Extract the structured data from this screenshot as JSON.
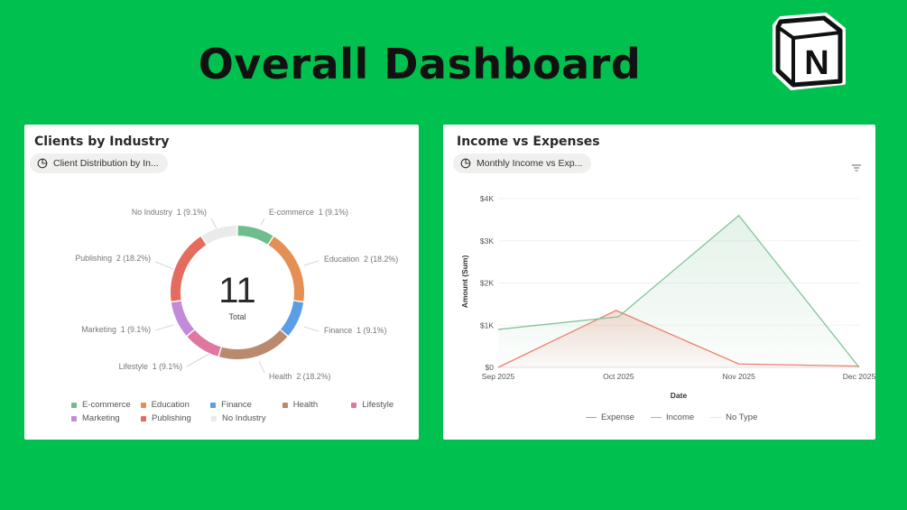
{
  "page": {
    "title": "Overall Dashboard",
    "logo_letter": "N"
  },
  "colors": {
    "background": "#00c04f",
    "card": "#ffffff",
    "expense": "#e8826d",
    "income": "#82c49a"
  },
  "clients_card": {
    "title": "Clients by Industry",
    "view_label": "Client Distribution by In...",
    "total_value": "11",
    "total_label": "Total",
    "slice_labels": [
      {
        "key": "ecom",
        "text": "E-commerce  1 (9.1%)"
      },
      {
        "key": "edu",
        "text": "Education  2 (18.2%)"
      },
      {
        "key": "fin",
        "text": "Finance  1 (9.1%)"
      },
      {
        "key": "health",
        "text": "Health  2 (18.2%)"
      },
      {
        "key": "life",
        "text": "Lifestyle  1 (9.1%)"
      },
      {
        "key": "mkt",
        "text": "Marketing  1 (9.1%)"
      },
      {
        "key": "pub",
        "text": "Publishing  2 (18.2%)"
      },
      {
        "key": "none",
        "text": "No Industry  1 (9.1%)"
      }
    ],
    "legend_rows": [
      [
        {
          "label": "E-commerce",
          "color": "#6ebd8c"
        },
        {
          "label": "Education",
          "color": "#e49055"
        },
        {
          "label": "Finance",
          "color": "#5b9ee6"
        },
        {
          "label": "Health",
          "color": "#b98a6e"
        },
        {
          "label": "Lifestyle",
          "color": "#df77a0"
        }
      ],
      [
        {
          "label": "Marketing",
          "color": "#c28ad8"
        },
        {
          "label": "Publishing",
          "color": "#e66b5f"
        },
        {
          "label": "No Industry",
          "color": "#eaeaea"
        }
      ]
    ]
  },
  "income_card": {
    "title": "Income vs Expenses",
    "view_label": "Monthly Income vs Exp...",
    "filter_icon": "filter-icon",
    "legend": [
      {
        "label": "Expense",
        "color": "#e8826d"
      },
      {
        "label": "Income",
        "color": "#82c49a"
      },
      {
        "label": "No Type",
        "color": "#e6e6e6"
      }
    ]
  },
  "chart_data": [
    {
      "type": "pie",
      "title": "Clients by Industry",
      "total": 11,
      "slices": [
        {
          "label": "E-commerce",
          "value": 1,
          "percent": 9.1,
          "color": "#6ebd8c"
        },
        {
          "label": "Education",
          "value": 2,
          "percent": 18.2,
          "color": "#e49055"
        },
        {
          "label": "Finance",
          "value": 1,
          "percent": 9.1,
          "color": "#5b9ee6"
        },
        {
          "label": "Health",
          "value": 2,
          "percent": 18.2,
          "color": "#b98a6e"
        },
        {
          "label": "Lifestyle",
          "value": 1,
          "percent": 9.1,
          "color": "#df77a0"
        },
        {
          "label": "Marketing",
          "value": 1,
          "percent": 9.1,
          "color": "#c28ad8"
        },
        {
          "label": "Publishing",
          "value": 2,
          "percent": 18.2,
          "color": "#e66b5f"
        },
        {
          "label": "No Industry",
          "value": 1,
          "percent": 9.1,
          "color": "#eaeaea"
        }
      ],
      "legend_placement": "bottom"
    },
    {
      "type": "area",
      "title": "Income vs Expenses",
      "xlabel": "Date",
      "ylabel": "Amount (Sum)",
      "categories": [
        "Sep 2025",
        "Oct 2025",
        "Nov 2025",
        "Dec 2025"
      ],
      "x_positions": [
        0,
        1,
        2,
        3
      ],
      "expense_peak_x": 0.98,
      "yticks": [
        "$0",
        "$1K",
        "$2K",
        "$3K",
        "$4K"
      ],
      "ylim": [
        0,
        4000
      ],
      "series": [
        {
          "name": "Expense",
          "x": [
            0,
            0.98,
            2,
            3
          ],
          "values": [
            0,
            1350,
            80,
            30
          ],
          "color": "#e8826d"
        },
        {
          "name": "Income",
          "x": [
            0,
            1,
            2,
            3
          ],
          "values": [
            900,
            1200,
            3600,
            0
          ],
          "color": "#82c49a"
        },
        {
          "name": "No Type",
          "x": [],
          "values": [],
          "color": "#e6e6e6"
        }
      ],
      "grid": true,
      "legend_placement": "bottom"
    }
  ]
}
